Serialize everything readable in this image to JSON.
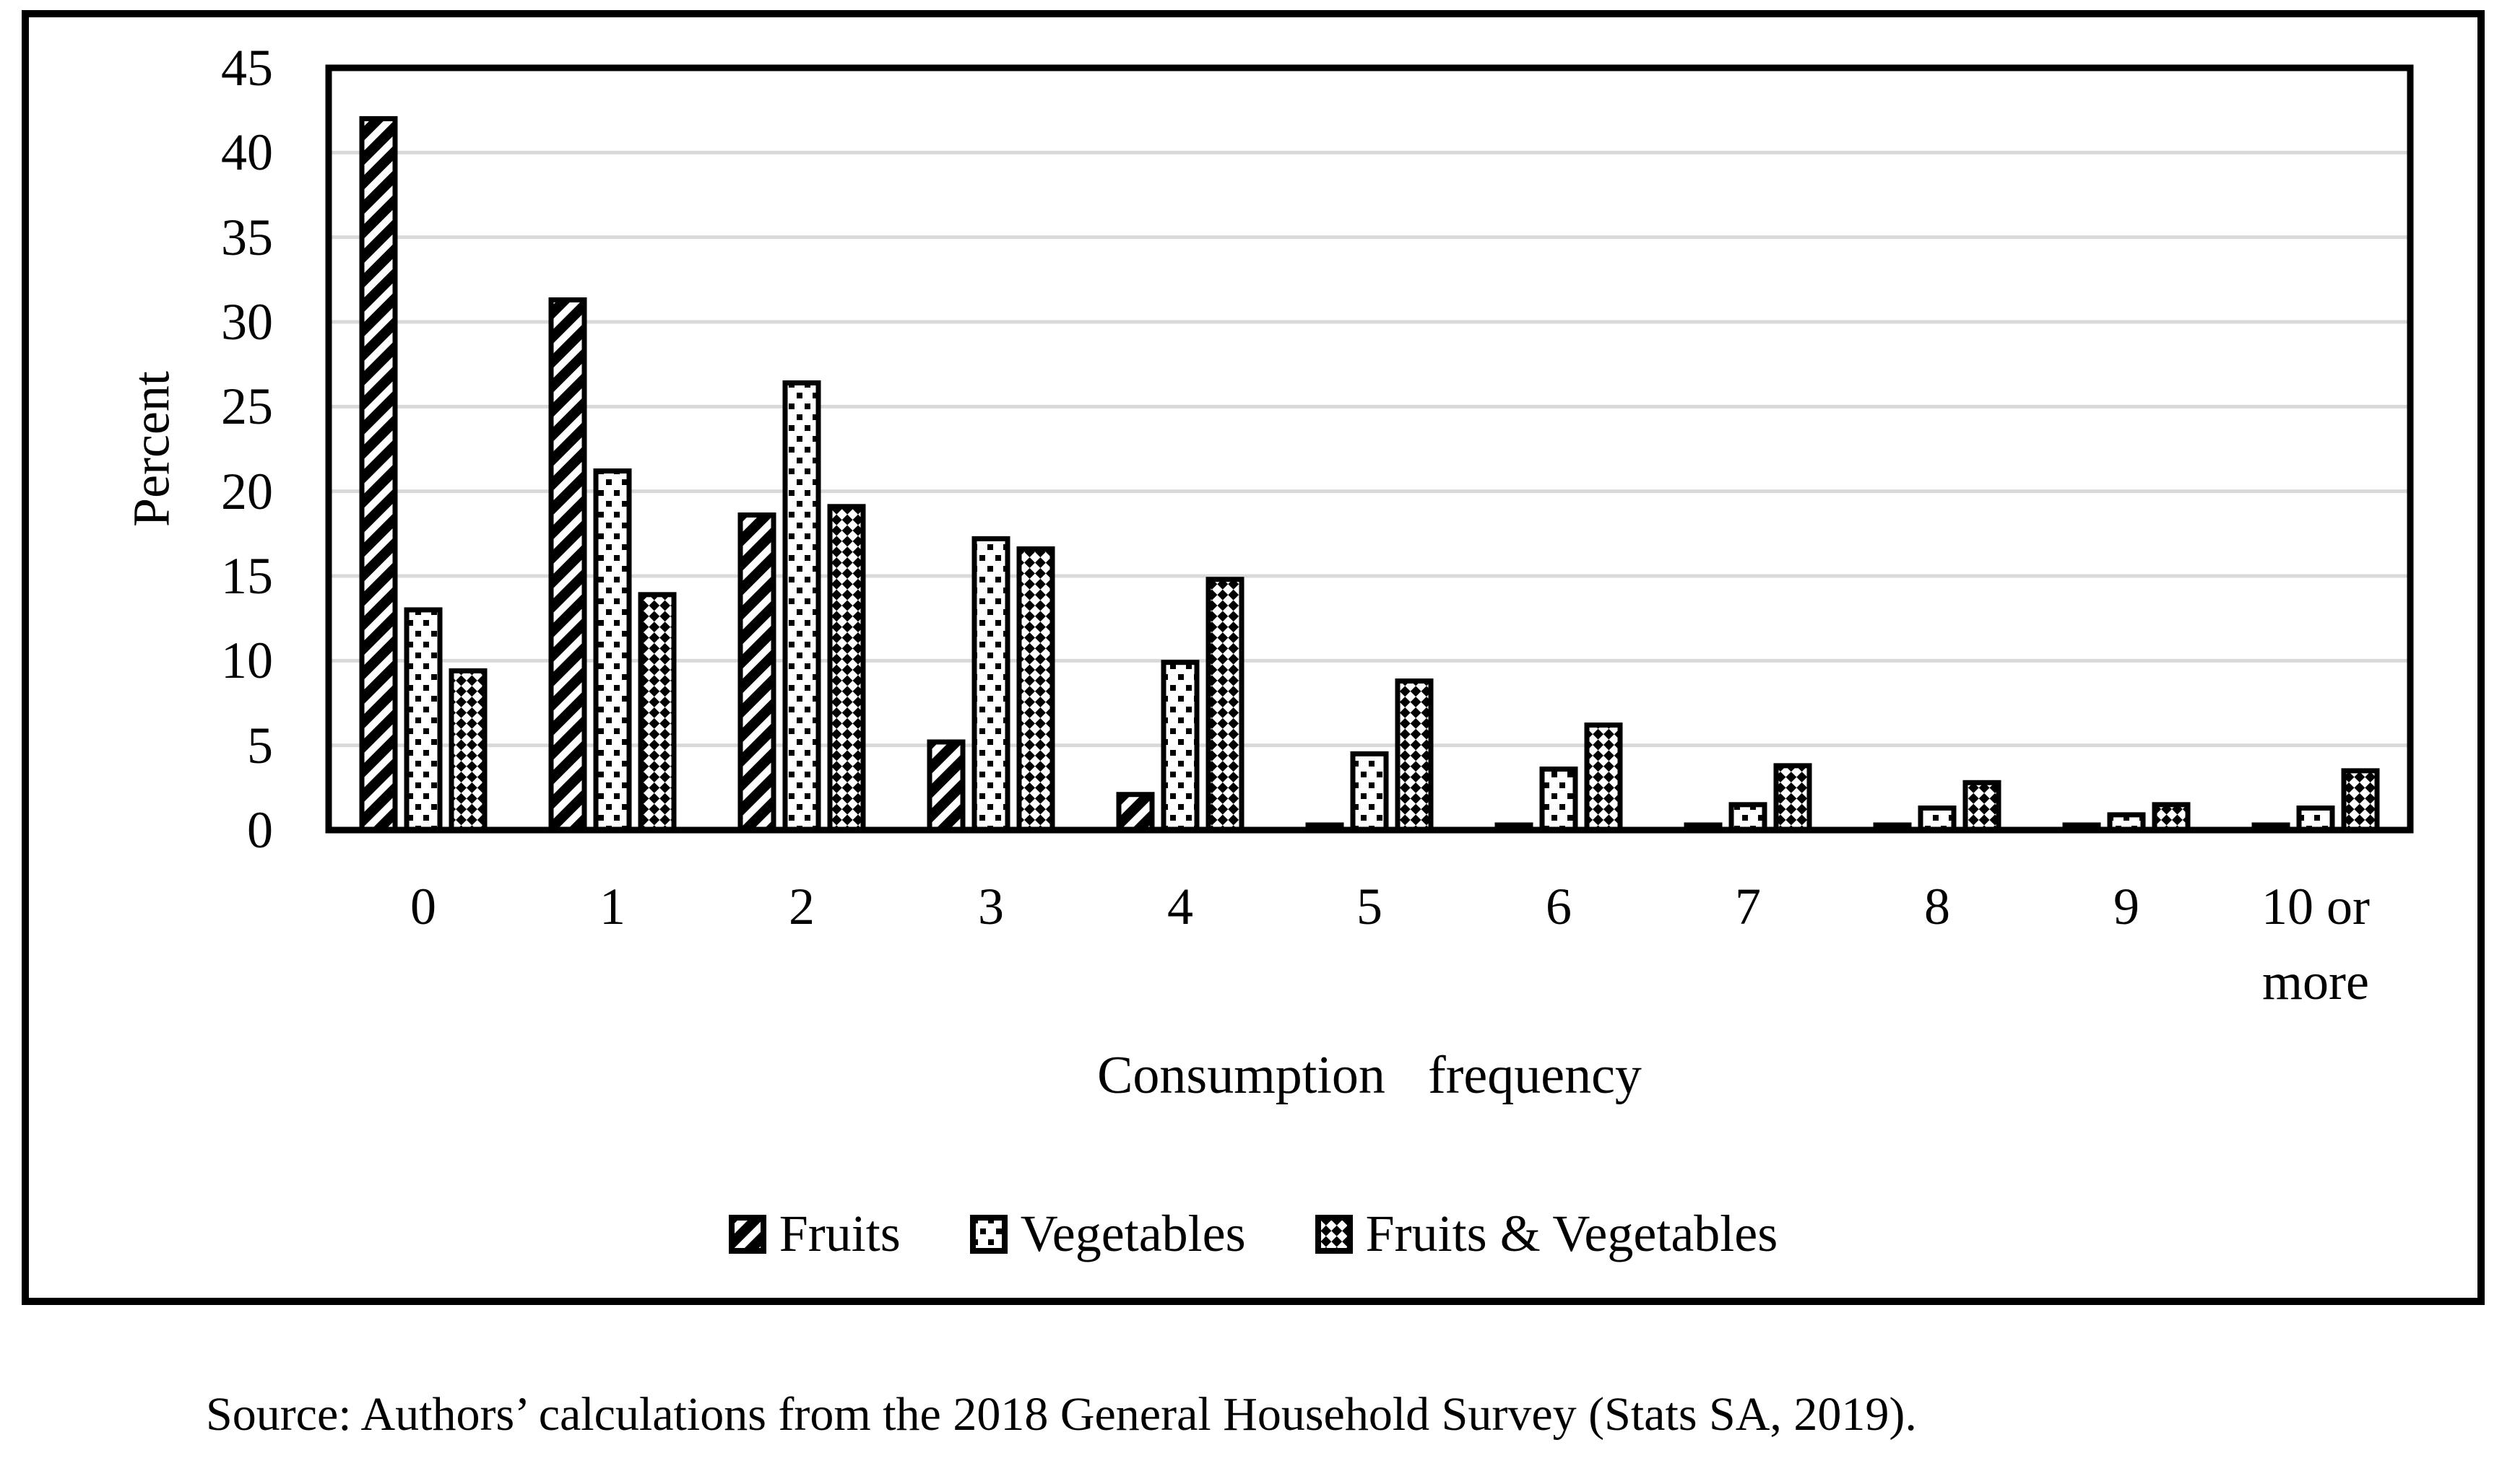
{
  "chart_data": {
    "type": "bar",
    "title": "",
    "categories": [
      "0",
      "1",
      "2",
      "3",
      "4",
      "5",
      "6",
      "7",
      "8",
      "9",
      "10 or\nmore"
    ],
    "series": [
      {
        "name": "Fruits",
        "pattern": "diagonal-stripes",
        "values": [
          42.0,
          31.3,
          18.6,
          5.2,
          2.1,
          0.3,
          0.3,
          0.3,
          0.3,
          0.3,
          0.3
        ]
      },
      {
        "name": "Vegetables",
        "pattern": "square-dots",
        "values": [
          13.0,
          21.2,
          26.4,
          17.2,
          9.9,
          4.5,
          3.6,
          1.5,
          1.3,
          0.9,
          1.3
        ]
      },
      {
        "name": "Fruits & Vegetables",
        "pattern": "checkerboard",
        "values": [
          9.4,
          13.9,
          19.1,
          16.6,
          14.8,
          8.8,
          6.2,
          3.8,
          2.8,
          1.5,
          3.5
        ]
      }
    ],
    "xlabel": "Consumption frequency",
    "ylabel": "Percent",
    "ylim": [
      0,
      45
    ],
    "ytick_step": 5,
    "ytick_labels": [
      "0",
      "5",
      "10",
      "15",
      "20",
      "25",
      "30",
      "35",
      "40",
      "45"
    ],
    "grid": true,
    "legend_position": "bottom"
  },
  "colors": {
    "bar_fill": "#000000",
    "bar_stroke": "#000000",
    "gridline": "#d9d9d9",
    "plot_border": "#000000",
    "figure_border": "#000000",
    "background": "#ffffff"
  },
  "source_note": "Source: Authors’ calculations from the 2018 General Household Survey (Stats SA, 2019)."
}
